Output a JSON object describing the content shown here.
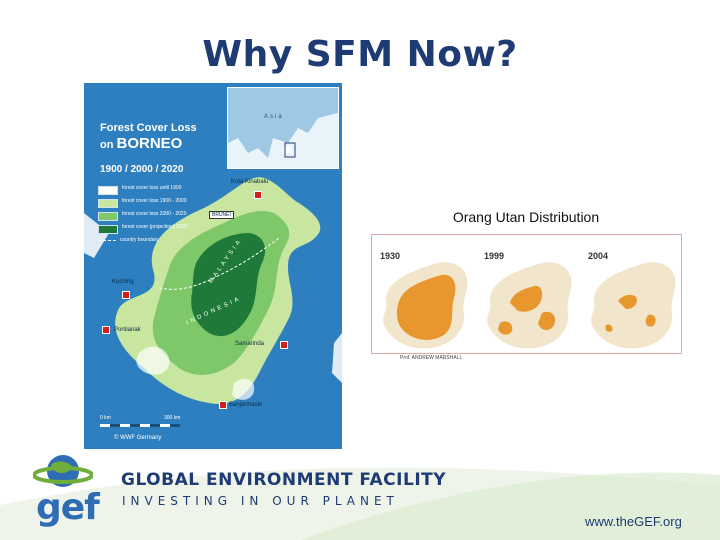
{
  "slide": {
    "title": "Why SFM Now?"
  },
  "map": {
    "title_line1": "Forest Cover Loss",
    "title_line2": "on",
    "title_line3": "BORNEO",
    "years": "1900 / 2000 / 2020",
    "legend": [
      {
        "label": "forest cover loss until 1900",
        "color": "#ffffff"
      },
      {
        "label": "forest cover loss 1900 - 2000",
        "color": "#c8e6a0"
      },
      {
        "label": "forest cover loss 2000 - 2020",
        "color": "#7fc86a"
      },
      {
        "label": "forest cover (projection) 2020",
        "color": "#1f7a3a"
      }
    ],
    "boundary_label": "country boundary",
    "inset_label": "Asia",
    "cities": {
      "kota_kinabalu": "Kota Kinabalu",
      "kuching": "Kuching",
      "pontianak": "Pontianak",
      "samarinda": "Samarinda",
      "banjarmasin": "Banjarmasin"
    },
    "countries": {
      "brunei": "BRUNEI",
      "malaysia": "MALAYSIA",
      "indonesia": "INDONESIA"
    },
    "scale": {
      "start": "0 km",
      "end": "300 km"
    },
    "copyright": "© WWF Germany"
  },
  "orangutan": {
    "title": "Orang Utan Distribution",
    "years": [
      "1930",
      "1999",
      "2004"
    ],
    "source": "Prof. ANDREW MARSHALL"
  },
  "footer": {
    "logo_text": "gef",
    "org_name": "GLOBAL ENVIRONMENT FACILITY",
    "tagline": "INVESTING IN OUR PLANET",
    "website": "www.theGEF.org"
  },
  "colors": {
    "title_blue": "#1f3b73",
    "ocean": "#2d7fc0",
    "orange": "#e8962e",
    "logo_green": "#6fae3a"
  }
}
